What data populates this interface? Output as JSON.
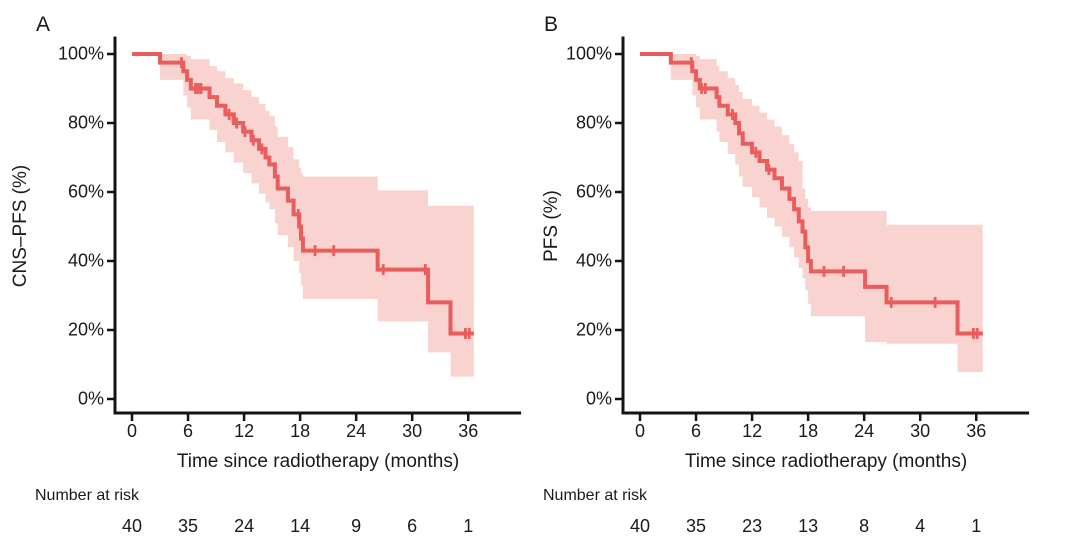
{
  "colors": {
    "curve": "#e95d5c",
    "confidence_band": "#f9d3d0",
    "axis": "#141414",
    "text": "#1a1a1a",
    "background": "#ffffff"
  },
  "chart_data": [
    {
      "type": "line",
      "subtype": "kaplan_meier_step",
      "panel_label": "A",
      "title": "",
      "xlabel": "Time since radiotherapy (months)",
      "ylabel": "CNS–PFS (%)",
      "xlim": [
        0,
        41.5
      ],
      "ylim": [
        0,
        100
      ],
      "x_ticks": [
        0,
        6,
        12,
        18,
        24,
        30,
        36
      ],
      "y_ticks": [
        0,
        20,
        40,
        60,
        80,
        100
      ],
      "y_tick_labels": [
        "0%",
        "20%",
        "40%",
        "60%",
        "80%",
        "100%"
      ],
      "grid": false,
      "legend_position": "none",
      "series": [
        {
          "name": "CNS–PFS",
          "steps": [
            [
              0,
              100
            ],
            [
              3,
              97.5
            ],
            [
              5.5,
              95
            ],
            [
              5.9,
              92.5
            ],
            [
              6.3,
              90
            ],
            [
              8.3,
              87.5
            ],
            [
              9.1,
              85
            ],
            [
              10,
              82.5
            ],
            [
              10.9,
              80
            ],
            [
              11.9,
              77.5
            ],
            [
              12.8,
              75
            ],
            [
              13.6,
              72.5
            ],
            [
              14.3,
              70
            ],
            [
              14.7,
              68
            ],
            [
              15.3,
              64.5
            ],
            [
              15.6,
              61
            ],
            [
              16.7,
              57.5
            ],
            [
              17.3,
              53.5
            ],
            [
              17.9,
              50
            ],
            [
              18.1,
              46.5
            ],
            [
              18.3,
              43
            ],
            [
              26.3,
              37.5
            ],
            [
              31.7,
              28
            ],
            [
              34.1,
              19
            ]
          ],
          "end_time": 36.6,
          "censor_times": [
            5.3,
            6.8,
            7.1,
            7.4,
            10.4,
            11.2,
            12.1,
            13.0,
            13.9,
            17.8,
            19.6,
            21.6,
            26.9,
            31.4,
            35.7,
            36.1
          ],
          "confidence_band": [
            [
              3,
              92.5,
              100
            ],
            [
              5.5,
              88,
              100
            ],
            [
              5.9,
              84.5,
              99.5
            ],
            [
              6.3,
              81,
              98.5
            ],
            [
              8.3,
              78,
              96.5
            ],
            [
              9.1,
              74.5,
              95
            ],
            [
              10,
              71.5,
              93
            ],
            [
              10.9,
              68.5,
              91.5
            ],
            [
              11.9,
              65.5,
              89.5
            ],
            [
              12.8,
              62.5,
              87.5
            ],
            [
              13.6,
              59.5,
              85.5
            ],
            [
              14.3,
              57,
              83.5
            ],
            [
              14.7,
              55,
              82
            ],
            [
              15.3,
              51,
              79
            ],
            [
              15.6,
              47.5,
              76
            ],
            [
              16.7,
              44,
              73
            ],
            [
              17.3,
              40,
              69.5
            ],
            [
              17.9,
              36.5,
              67
            ],
            [
              18.1,
              33,
              65.5
            ],
            [
              18.3,
              29,
              64.5
            ],
            [
              26.3,
              22.5,
              60.5
            ],
            [
              31.7,
              13.5,
              56
            ],
            [
              34.1,
              6.5,
              56
            ]
          ]
        }
      ],
      "number_at_risk": {
        "label": "Number at risk",
        "times": [
          0,
          6,
          12,
          18,
          24,
          30,
          36
        ],
        "values": [
          40,
          35,
          24,
          14,
          9,
          6,
          1
        ]
      }
    },
    {
      "type": "line",
      "subtype": "kaplan_meier_step",
      "panel_label": "B",
      "title": "",
      "xlabel": "Time since radiotherapy (months)",
      "ylabel": "PFS (%)",
      "xlim": [
        0,
        41.5
      ],
      "ylim": [
        0,
        100
      ],
      "x_ticks": [
        0,
        6,
        12,
        18,
        24,
        30,
        36
      ],
      "y_ticks": [
        0,
        20,
        40,
        60,
        80,
        100
      ],
      "y_tick_labels": [
        "0%",
        "20%",
        "40%",
        "60%",
        "80%",
        "100%"
      ],
      "grid": false,
      "legend_position": "none",
      "series": [
        {
          "name": "PFS",
          "steps": [
            [
              0,
              100
            ],
            [
              3.3,
              97.5
            ],
            [
              5.6,
              95
            ],
            [
              6.0,
              92.5
            ],
            [
              6.4,
              90
            ],
            [
              8.2,
              87.5
            ],
            [
              8.5,
              85
            ],
            [
              9.4,
              82.5
            ],
            [
              10.2,
              80
            ],
            [
              10.6,
              77
            ],
            [
              11.0,
              74
            ],
            [
              12.0,
              71.5
            ],
            [
              12.8,
              69
            ],
            [
              13.6,
              66.5
            ],
            [
              14.4,
              64
            ],
            [
              15.2,
              61
            ],
            [
              16.0,
              58
            ],
            [
              16.5,
              55
            ],
            [
              17.0,
              51.5
            ],
            [
              17.4,
              48.5
            ],
            [
              17.7,
              44
            ],
            [
              18.0,
              40
            ],
            [
              18.3,
              37
            ],
            [
              24.1,
              32.5
            ],
            [
              26.4,
              28
            ],
            [
              34.0,
              19
            ]
          ],
          "end_time": 36.7,
          "censor_times": [
            5.5,
            6.6,
            7.0,
            9.9,
            12.4,
            13.8,
            19.7,
            21.8,
            26.9,
            31.6,
            35.7,
            36.1
          ],
          "confidence_band": [
            [
              3.3,
              92.5,
              100
            ],
            [
              5.6,
              88,
              100
            ],
            [
              6.0,
              84.5,
              99.5
            ],
            [
              6.4,
              81,
              98.5
            ],
            [
              8.2,
              77.5,
              96.5
            ],
            [
              8.5,
              74.5,
              95
            ],
            [
              9.4,
              71,
              93
            ],
            [
              10.2,
              68,
              91
            ],
            [
              10.6,
              64.5,
              89
            ],
            [
              11.0,
              61.5,
              87
            ],
            [
              12.0,
              58.5,
              85
            ],
            [
              12.8,
              55.5,
              83
            ],
            [
              13.6,
              52.5,
              81
            ],
            [
              14.4,
              50,
              79
            ],
            [
              15.2,
              47,
              76.5
            ],
            [
              16.0,
              44,
              74
            ],
            [
              16.5,
              41,
              71.5
            ],
            [
              17.0,
              38,
              69
            ],
            [
              17.4,
              35,
              61
            ],
            [
              17.7,
              31.5,
              58
            ],
            [
              18.0,
              27.5,
              55.5
            ],
            [
              18.3,
              24,
              54.5
            ],
            [
              24.1,
              16.5,
              54.5
            ],
            [
              26.4,
              16,
              50.5
            ],
            [
              34.0,
              7.8,
              50.5
            ]
          ]
        }
      ],
      "number_at_risk": {
        "label": "Number at risk",
        "times": [
          0,
          6,
          12,
          18,
          24,
          30,
          36
        ],
        "values": [
          40,
          35,
          23,
          13,
          8,
          4,
          1
        ]
      }
    }
  ]
}
